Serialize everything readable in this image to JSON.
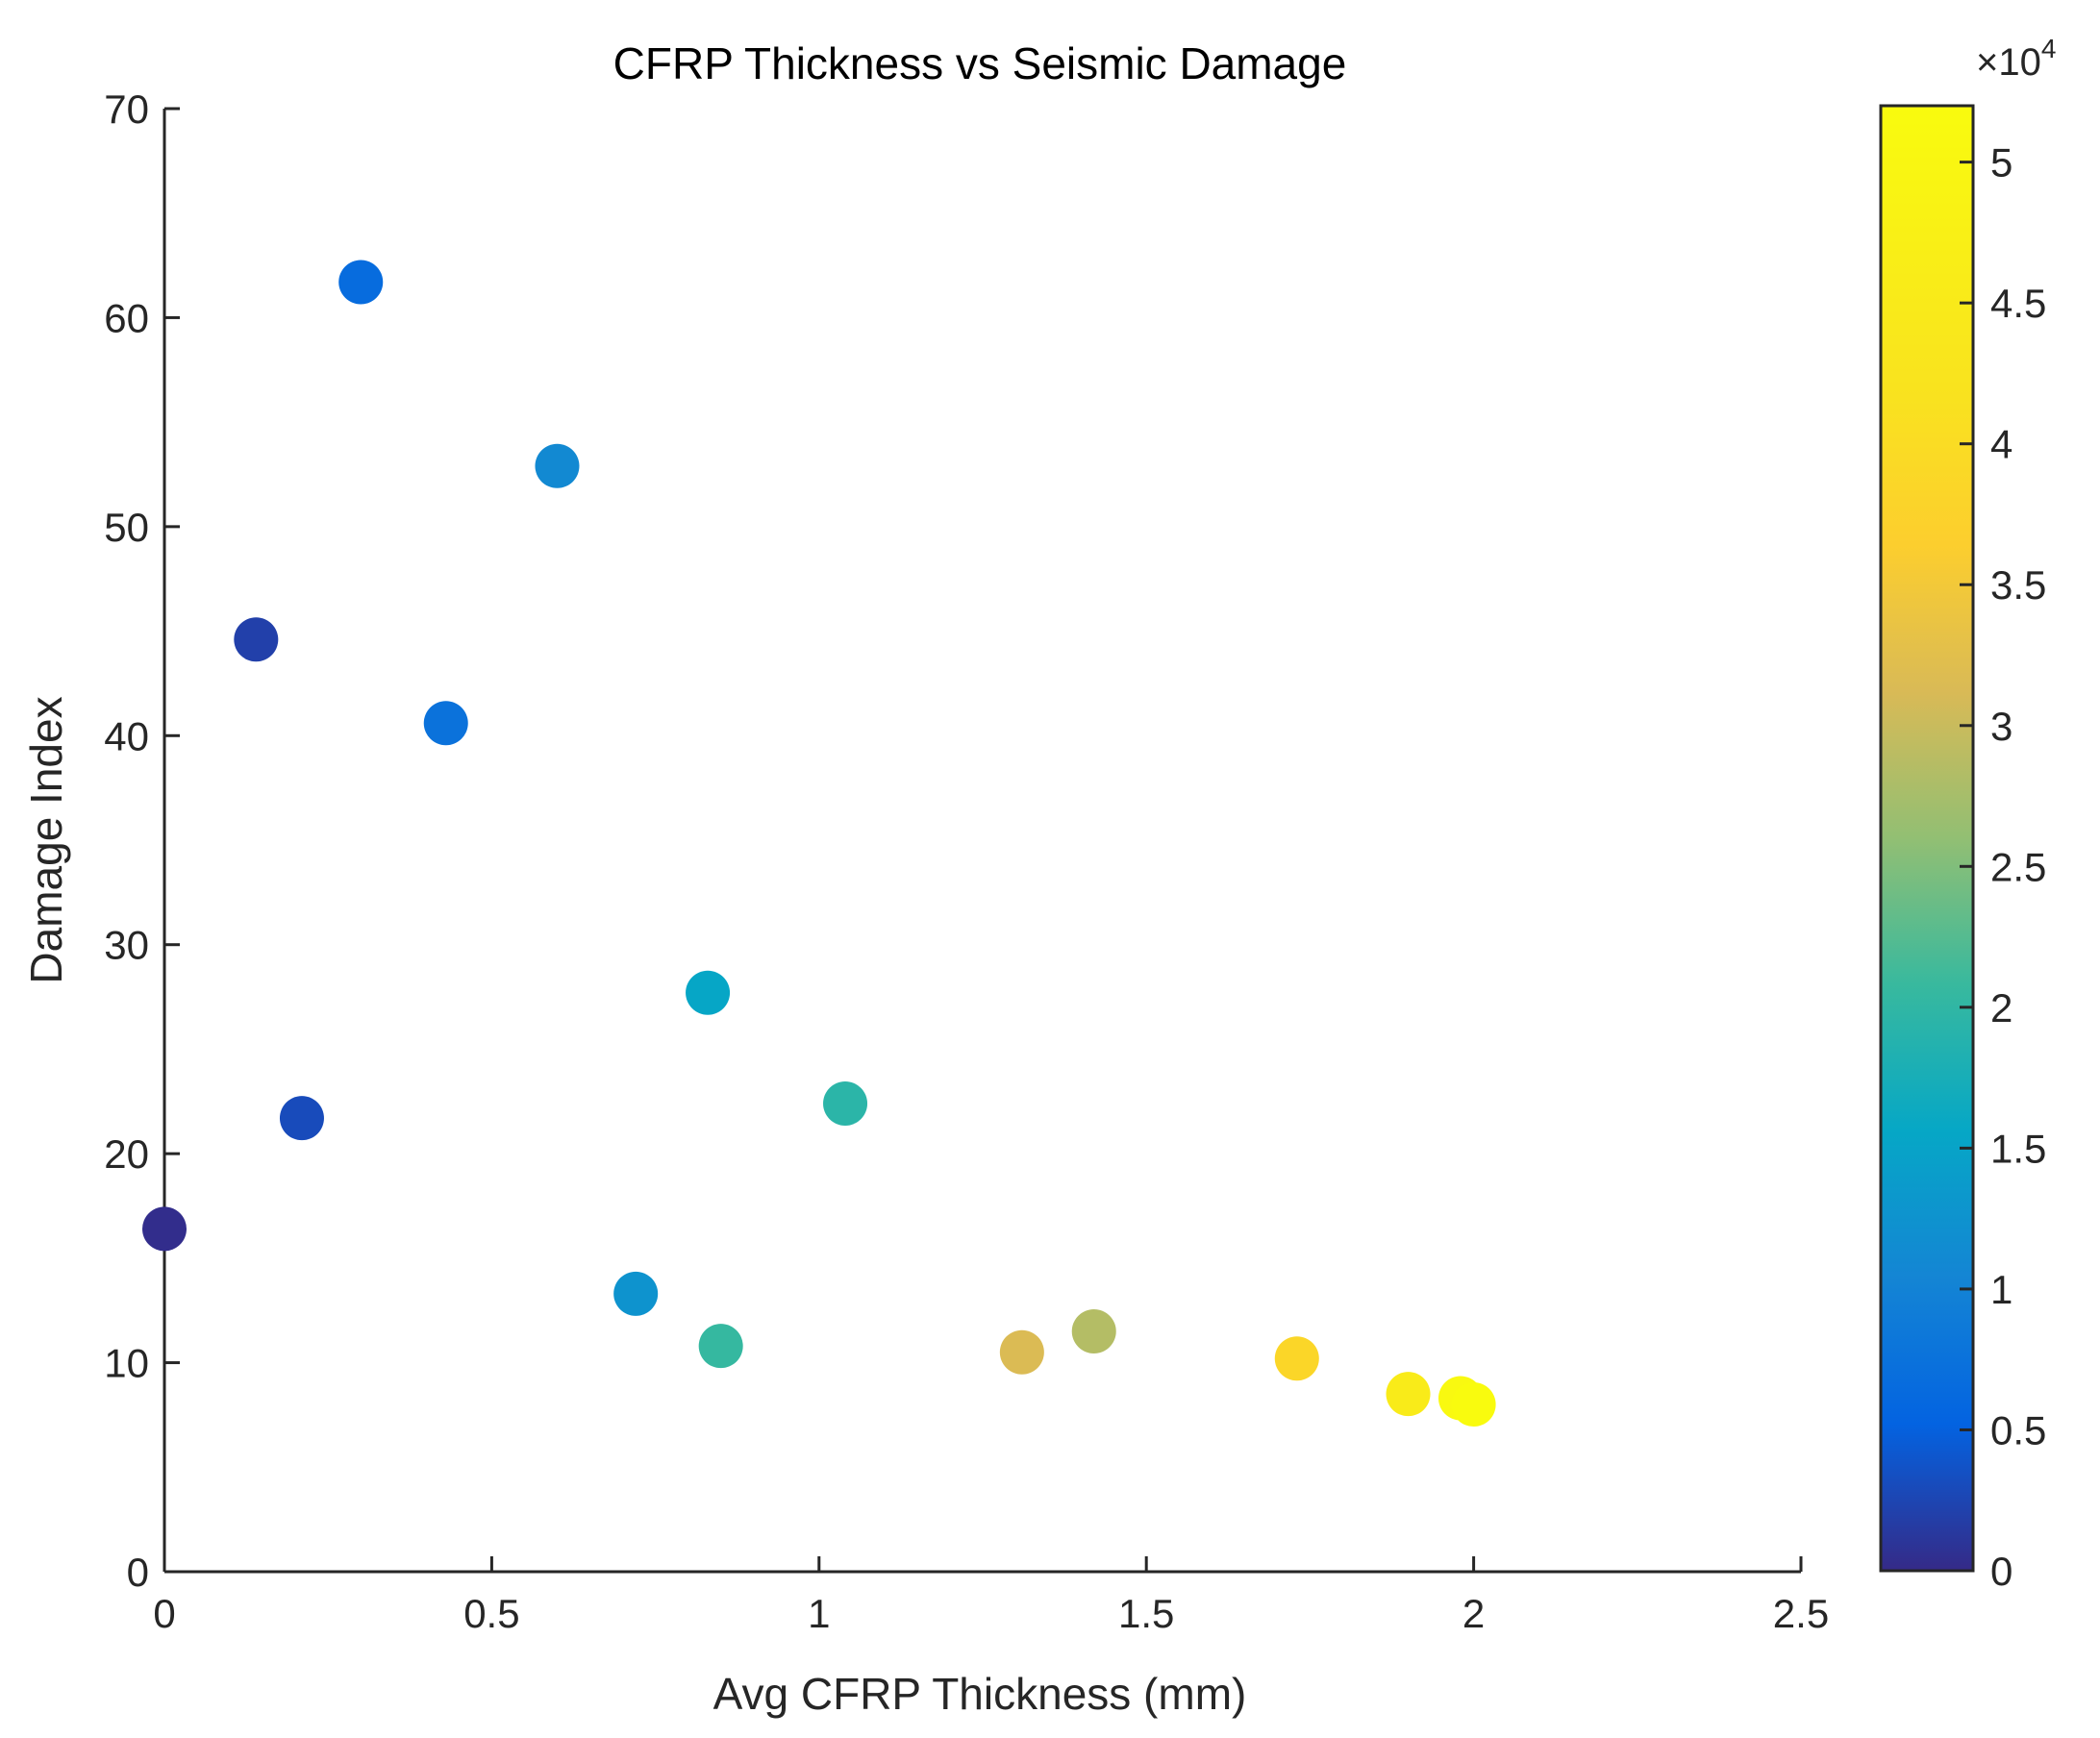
{
  "chart_data": {
    "type": "scatter",
    "title": "CFRP Thickness vs Seismic Damage",
    "xlabel": "Avg CFRP Thickness (mm)",
    "ylabel": "Damage Index",
    "xlim": [
      0,
      2.5
    ],
    "ylim": [
      0,
      70
    ],
    "x_ticks": [
      0,
      0.5,
      1,
      1.5,
      2,
      2.5
    ],
    "x_tick_labels": [
      "0",
      "0.5",
      "1",
      "1.5",
      "2",
      "2.5"
    ],
    "y_ticks": [
      0,
      10,
      20,
      30,
      40,
      50,
      60,
      70
    ],
    "y_tick_labels": [
      "0",
      "10",
      "20",
      "30",
      "40",
      "50",
      "60",
      "70"
    ],
    "grid": false,
    "colormap": "parula",
    "colorbar": {
      "clim": [
        0,
        52000
      ],
      "ticks": [
        0,
        5000,
        10000,
        15000,
        20000,
        25000,
        30000,
        35000,
        40000,
        45000,
        50000
      ],
      "tick_labels": [
        "0",
        "0.5",
        "1",
        "1.5",
        "2",
        "2.5",
        "3",
        "3.5",
        "4",
        "4.5",
        "5"
      ],
      "multiplier_base": "×10",
      "multiplier_exponent": "4"
    },
    "points": [
      {
        "x": 0.0,
        "y": 16.4,
        "c": 300
      },
      {
        "x": 0.14,
        "y": 44.6,
        "c": 2000
      },
      {
        "x": 0.21,
        "y": 21.7,
        "c": 3000
      },
      {
        "x": 0.3,
        "y": 61.7,
        "c": 6500
      },
      {
        "x": 0.43,
        "y": 40.6,
        "c": 7500
      },
      {
        "x": 0.6,
        "y": 52.9,
        "c": 11000
      },
      {
        "x": 0.72,
        "y": 13.3,
        "c": 12500
      },
      {
        "x": 0.83,
        "y": 27.7,
        "c": 15500
      },
      {
        "x": 0.85,
        "y": 10.8,
        "c": 20500
      },
      {
        "x": 1.04,
        "y": 22.4,
        "c": 19500
      },
      {
        "x": 1.31,
        "y": 10.5,
        "c": 31500
      },
      {
        "x": 1.42,
        "y": 11.5,
        "c": 28500
      },
      {
        "x": 1.73,
        "y": 10.2,
        "c": 38500
      },
      {
        "x": 1.9,
        "y": 8.5,
        "c": 45500
      },
      {
        "x": 1.98,
        "y": 8.3,
        "c": 51000
      },
      {
        "x": 2.0,
        "y": 8.0,
        "c": 52000
      }
    ]
  }
}
